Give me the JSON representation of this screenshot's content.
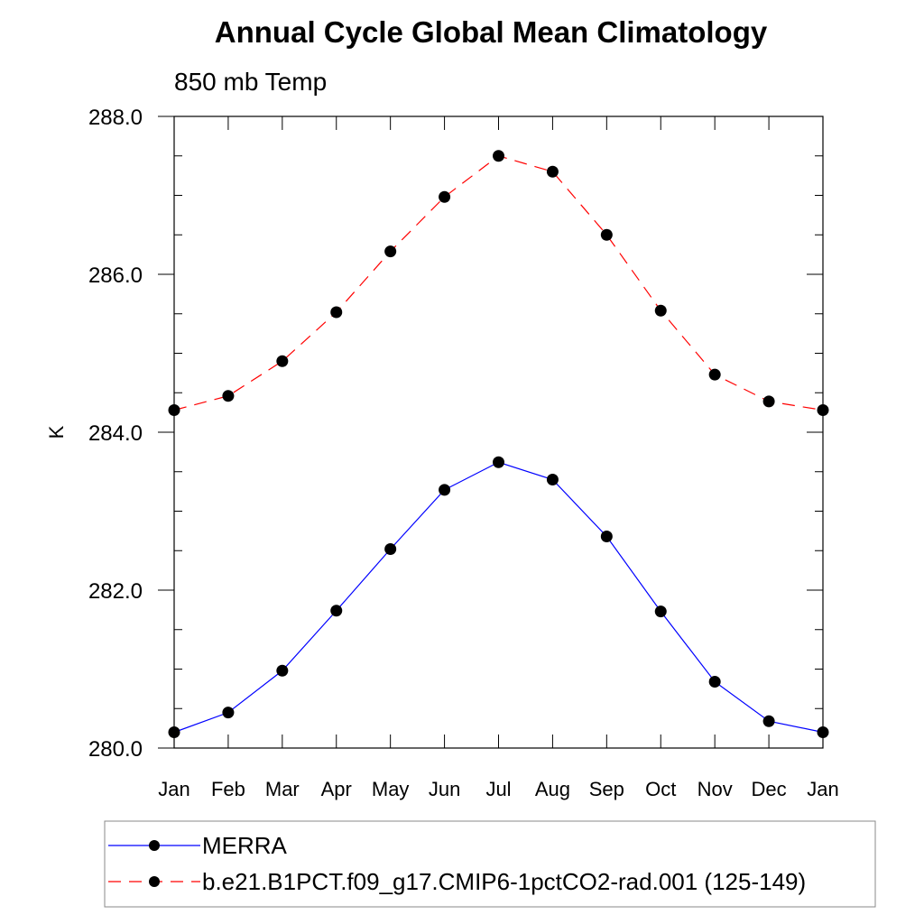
{
  "chart_data": {
    "type": "line",
    "title": "Annual Cycle Global Mean Climatology",
    "subtitle": "850 mb Temp",
    "xlabel": "",
    "ylabel": "K",
    "categories": [
      "Jan",
      "Feb",
      "Mar",
      "Apr",
      "May",
      "Jun",
      "Jul",
      "Aug",
      "Sep",
      "Oct",
      "Nov",
      "Dec",
      "Jan"
    ],
    "ylim": [
      280.0,
      288.0
    ],
    "yticks": [
      280.0,
      282.0,
      284.0,
      286.0,
      288.0
    ],
    "ytick_labels": [
      "280.0",
      "282.0",
      "284.0",
      "286.0",
      "288.0"
    ],
    "grid": false,
    "legend_position": "bottom",
    "series": [
      {
        "name": "MERRA",
        "color": "#0000ff",
        "dash": "solid",
        "marker": "circle",
        "values": [
          280.2,
          280.45,
          280.98,
          281.74,
          282.52,
          283.27,
          283.62,
          283.4,
          282.68,
          281.73,
          280.84,
          280.34,
          280.2
        ]
      },
      {
        "name": "b.e21.B1PCT.f09_g17.CMIP6-1pctCO2-rad.001 (125-149)",
        "color": "#ff0000",
        "dash": "dashed",
        "marker": "circle",
        "values": [
          284.28,
          284.46,
          284.9,
          285.52,
          286.29,
          286.98,
          287.5,
          287.3,
          286.5,
          285.54,
          284.73,
          284.39,
          284.28
        ]
      }
    ]
  }
}
